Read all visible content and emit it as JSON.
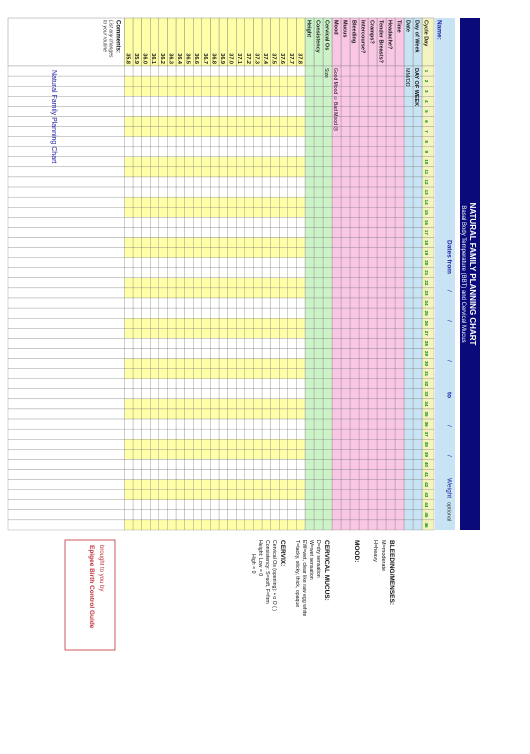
{
  "title": "NATURAL FAMILY PLANNING CHART",
  "subtitle": "Basal Body Temperature (BBT) and Cervical Mucus",
  "dates_from_label": "Dates from",
  "dates_sep": "/",
  "dates_to_label": "to",
  "weight_label": "Weight",
  "optional_label": "optional",
  "name_label": "Name:",
  "cycle_day_label": "Cycle Day",
  "cycle_days": [
    "1",
    "2",
    "3",
    "4",
    "5",
    "6",
    "7",
    "8",
    "9",
    "10",
    "11",
    "12",
    "13",
    "14",
    "15",
    "16",
    "17",
    "18",
    "19",
    "20",
    "21",
    "22",
    "23",
    "24",
    "25",
    "26",
    "27",
    "28",
    "29",
    "30",
    "31",
    "32",
    "33",
    "34",
    "35",
    "36",
    "37",
    "38",
    "39",
    "40",
    "41",
    "42",
    "43",
    "44",
    "45",
    "46"
  ],
  "day_of_week_label": "Day of Week",
  "day_of_week_value": "DAY OF WEEK",
  "date_label": "Date",
  "date_format": "MM/DD",
  "rows": {
    "time": "Time",
    "headache": "Headache?",
    "tender_breasts": "Tender Breasts?",
    "weight_short": "Weight",
    "cramps": "Cramps?",
    "intercourse": "Intercourse?",
    "bleeding": "Bleeding",
    "mucus": "Mucus",
    "mood": "Mood",
    "mood_good": "Good Mood",
    "mood_bad": "Bad Mood",
    "cervical_os": "Cervical Os",
    "cervical_os_value": "Size",
    "consistency": "Consistency",
    "height": "Height"
  },
  "temperatures": [
    "37.8",
    "37.7",
    "37.6",
    "37.5",
    "37.4",
    "37.3",
    "37.2",
    "37.1",
    "37.0",
    "36.9",
    "36.8",
    "36.7",
    "36.6",
    "36.5",
    "36.4",
    "36.3",
    "36.2",
    "36.1",
    "36.0",
    "35.9",
    "35.8"
  ],
  "comments_label": "Comments:",
  "comments_hint_1": "List any changes",
  "comments_hint_2": "to your routine",
  "watermark": "Natural Family Planning Chart",
  "legend": {
    "bleeding_title": "BLEEDING/MENSES:",
    "bleeding_items": [
      "M=moderate",
      "H=heavy"
    ],
    "mood_title": "MOOD:",
    "mucus_title": "CERVICAL MUCUS:",
    "mucus_items": [
      "D=dry sensation",
      "W=wet sensation",
      "EW=wet, clear like raw egg white",
      "T=tacky, sticky, thick, opaque"
    ],
    "cervix_title": "CERVIX:",
    "cervix_items": [
      "Cervical Os (opening): • o O ( )",
      "Consistency: S=soft, F=firm",
      "Height:   Low = 0",
      "High = 0"
    ]
  },
  "brand": {
    "line1": "brought to you by",
    "line2": "Epigee Birth Control Guide"
  },
  "colors": {
    "header_band": "#0a0a7a",
    "header_light": "#c8e4f4",
    "cycle_day_row": "#f4f4c0",
    "pink": "#f9c6e3",
    "green": "#ccf3c8",
    "yellow": "#ffffa8",
    "grid_line": "#7a7a7a",
    "blue_text": "#1a1aa0",
    "green_text": "#008a00",
    "brand_red": "#c0303b"
  }
}
